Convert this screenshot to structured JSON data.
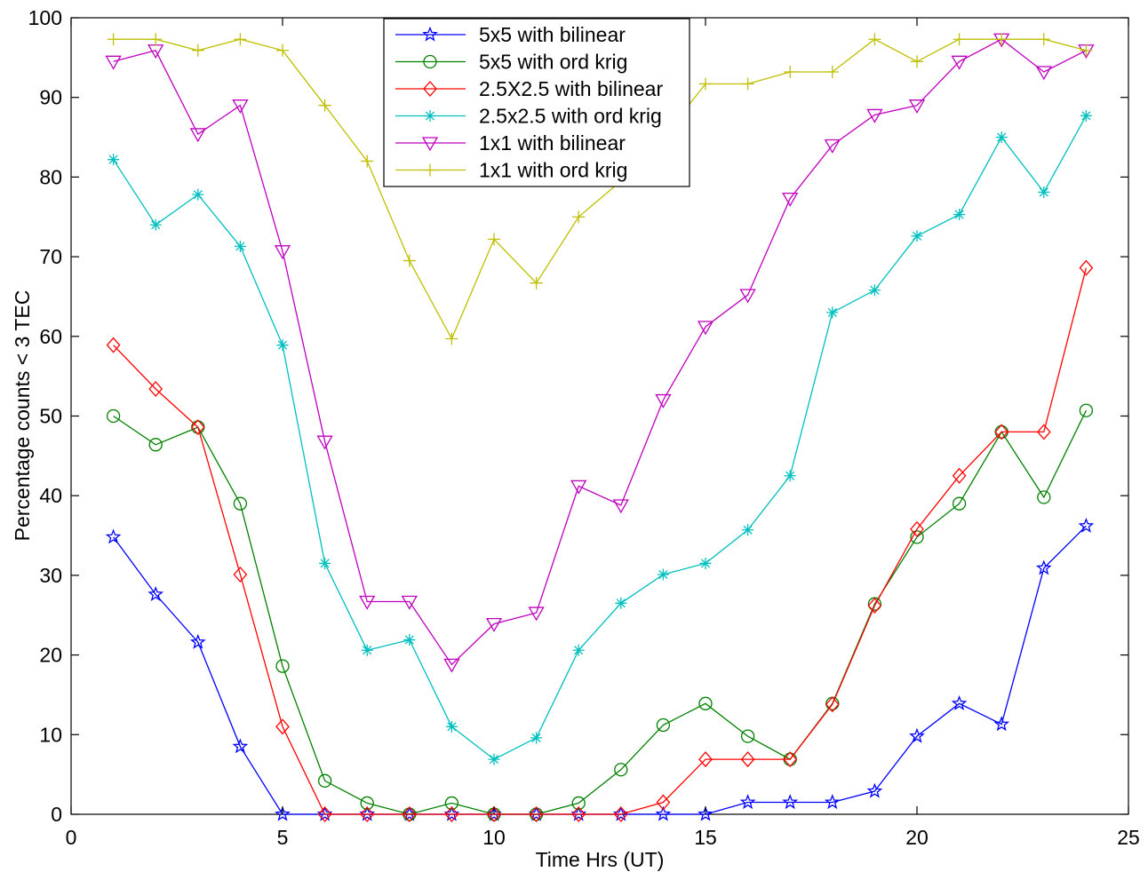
{
  "chart_data": {
    "type": "line",
    "title": "",
    "xlabel": "Time Hrs (UT)",
    "ylabel": "Percentage counts < 3 TEC",
    "xlim": [
      0,
      25
    ],
    "ylim": [
      0,
      100
    ],
    "xticks": [
      0,
      5,
      10,
      15,
      20,
      25
    ],
    "yticks": [
      0,
      10,
      20,
      30,
      40,
      50,
      60,
      70,
      80,
      90,
      100
    ],
    "grid": false,
    "legend_position": "top-center",
    "x": [
      1,
      2,
      3,
      4,
      5,
      6,
      7,
      8,
      9,
      10,
      11,
      12,
      13,
      14,
      15,
      16,
      17,
      18,
      19,
      20,
      21,
      22,
      23,
      24
    ],
    "series": [
      {
        "name": "5x5 with bilinear",
        "color": "#0000ff",
        "marker": "star",
        "values": [
          34.8,
          27.6,
          21.6,
          8.5,
          0,
          0,
          0,
          0,
          0,
          0,
          0,
          0,
          0,
          0,
          0,
          1.5,
          1.5,
          1.5,
          2.9,
          9.8,
          13.9,
          11.3,
          30.9,
          36.2
        ]
      },
      {
        "name": "5x5 with ord krig",
        "color": "#008000",
        "marker": "circle",
        "values": [
          50.0,
          46.4,
          48.6,
          39.0,
          18.6,
          4.2,
          1.4,
          0,
          1.4,
          0,
          0,
          1.4,
          5.6,
          11.2,
          13.9,
          9.8,
          6.9,
          13.9,
          26.4,
          34.8,
          39.0,
          48.0,
          39.8,
          50.7
        ]
      },
      {
        "name": "2.5X2.5 with bilinear",
        "color": "#ff0000",
        "marker": "diamond",
        "values": [
          58.9,
          53.4,
          48.6,
          30.1,
          11.0,
          0,
          0,
          0,
          0,
          0,
          0,
          0,
          0,
          1.5,
          6.9,
          6.9,
          6.9,
          13.8,
          26.2,
          35.8,
          42.5,
          48.0,
          48.0,
          68.6
        ]
      },
      {
        "name": "2.5x2.5 with ord krig",
        "color": "#00bfbf",
        "marker": "asterisk",
        "values": [
          82.2,
          74.0,
          77.8,
          71.3,
          58.9,
          31.5,
          20.6,
          21.9,
          11.0,
          6.9,
          9.6,
          20.6,
          26.5,
          30.1,
          31.5,
          35.7,
          42.5,
          63.0,
          65.8,
          72.6,
          75.3,
          85.0,
          78.1,
          87.7
        ]
      },
      {
        "name": "1x1 with bilinear",
        "color": "#bf00bf",
        "marker": "triangle-down",
        "values": [
          94.5,
          95.9,
          85.4,
          89.0,
          70.7,
          46.8,
          26.7,
          26.7,
          18.8,
          23.9,
          25.3,
          41.2,
          38.8,
          52.0,
          61.2,
          65.2,
          77.3,
          84.0,
          87.8,
          89.0,
          94.5,
          97.3,
          93.2,
          95.9
        ]
      },
      {
        "name": "1x1 with ord krig",
        "color": "#bfbf00",
        "marker": "plus",
        "values": [
          97.3,
          97.3,
          95.9,
          97.3,
          95.9,
          89.0,
          82.0,
          69.5,
          59.7,
          72.2,
          66.7,
          75.0,
          79.5,
          85.0,
          91.7,
          91.7,
          93.2,
          93.2,
          97.3,
          94.5,
          97.3,
          97.3,
          97.3,
          95.9
        ]
      }
    ]
  }
}
